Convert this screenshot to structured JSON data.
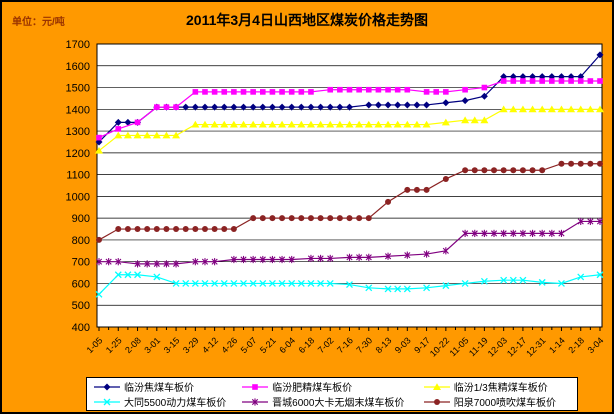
{
  "header": {
    "title": "2011年3月4日山西地区煤炭价格走势图",
    "unit_label": "单位：元/吨"
  },
  "chart_data": {
    "type": "line",
    "title": "2011年3月4日山西地区煤炭价格走势图",
    "unit": "元/吨",
    "xlabel": "",
    "ylabel": "元/吨",
    "ylim": [
      400,
      1700
    ],
    "ytick_step": 100,
    "grid": true,
    "legend_position": "bottom",
    "bg_color": "#FF9900",
    "plot_bg": "#FFFFFF",
    "categories": [
      "1-05",
      "1-25",
      "2-08",
      "3-01",
      "3-15",
      "3-29",
      "4-12",
      "4-26",
      "5-07",
      "5-21",
      "6-04",
      "6-18",
      "7-02",
      "7-16",
      "7-30",
      "8-13",
      "9-03",
      "9-17",
      "10-22",
      "11-05",
      "11-19",
      "12-03",
      "12-17",
      "12-31",
      "1-14",
      "2-18",
      "3-04"
    ],
    "series": [
      {
        "name": "临汾焦煤车板价",
        "color": "#000080",
        "marker": "diamond",
        "values": [
          1250,
          1340,
          1340,
          1410,
          1410,
          1410,
          1410,
          1410,
          1410,
          1410,
          1410,
          1410,
          1410,
          1410,
          1420,
          1420,
          1420,
          1420,
          1430,
          1440,
          1460,
          1550,
          1550,
          1550,
          1550,
          1550,
          1650
        ]
      },
      {
        "name": "临汾肥精煤车板价",
        "color": "#FF00FF",
        "marker": "square",
        "values": [
          1270,
          1310,
          1340,
          1410,
          1410,
          1480,
          1480,
          1480,
          1480,
          1480,
          1480,
          1480,
          1490,
          1490,
          1490,
          1490,
          1490,
          1480,
          1480,
          1490,
          1500,
          1530,
          1530,
          1530,
          1530,
          1530,
          1530
        ]
      },
      {
        "name": "临汾1/3焦精煤车板价",
        "color": "#FFFF00",
        "marker": "triangle",
        "values": [
          1210,
          1280,
          1280,
          1280,
          1280,
          1330,
          1330,
          1330,
          1330,
          1330,
          1330,
          1330,
          1330,
          1330,
          1330,
          1330,
          1330,
          1330,
          1340,
          1350,
          1350,
          1400,
          1400,
          1400,
          1400,
          1400,
          1400
        ]
      },
      {
        "name": "大同5500动力煤车板价",
        "color": "#00FFFF",
        "marker": "x",
        "values": [
          550,
          640,
          640,
          630,
          600,
          600,
          600,
          600,
          600,
          600,
          600,
          600,
          600,
          595,
          580,
          575,
          575,
          580,
          590,
          600,
          610,
          615,
          615,
          605,
          600,
          630,
          640
        ]
      },
      {
        "name": "晋城6000大卡无烟末煤车板价",
        "color": "#800080",
        "marker": "star",
        "values": [
          700,
          700,
          690,
          690,
          690,
          700,
          700,
          710,
          710,
          710,
          710,
          715,
          715,
          720,
          720,
          725,
          730,
          735,
          750,
          830,
          830,
          830,
          830,
          830,
          830,
          885,
          885
        ]
      },
      {
        "name": "阳泉7000喷吹煤车板价",
        "color": "#8B2323",
        "marker": "circle",
        "values": [
          800,
          850,
          850,
          850,
          850,
          850,
          850,
          850,
          900,
          900,
          900,
          900,
          900,
          900,
          900,
          975,
          1030,
          1030,
          1080,
          1120,
          1120,
          1120,
          1120,
          1120,
          1150,
          1150,
          1150
        ]
      }
    ]
  }
}
